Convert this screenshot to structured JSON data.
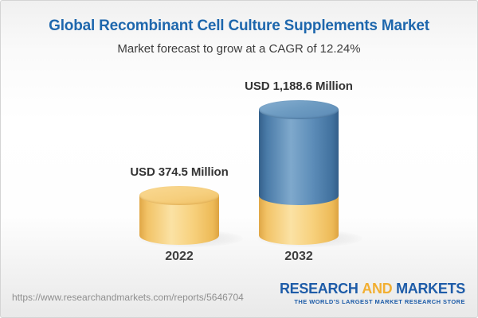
{
  "header": {
    "title": "Global Recombinant Cell Culture Supplements Market",
    "subtitle": "Market forecast to grow at a CAGR of 12.24%"
  },
  "chart_data": {
    "type": "bar",
    "title": "Global Recombinant Cell Culture Supplements Market",
    "subtitle": "Market forecast to grow at a CAGR of 12.24%",
    "unit": "USD Million",
    "cagr_percent": 12.24,
    "categories": [
      "2022",
      "2032"
    ],
    "values": [
      374.5,
      1188.6
    ],
    "ylim": [
      0,
      1188.6
    ],
    "grid": false,
    "legend": false,
    "bars": [
      {
        "category": "2022",
        "value": 374.5,
        "label": "USD 374.5 Million",
        "style": "yellow",
        "color": "#F5CE78"
      },
      {
        "category": "2032",
        "value": 1188.6,
        "label": "USD 1,188.6 Million",
        "style": "blue",
        "color": "#4E81AF",
        "base_segment": {
          "value": 374.5,
          "style": "yellow",
          "color": "#F5CE78"
        }
      }
    ]
  },
  "footer": {
    "url": "https://www.researchandmarkets.com/reports/5646704",
    "logo": {
      "word1": "RESEARCH",
      "word2": "AND",
      "word3": "MARKETS",
      "tagline": "THE WORLD'S LARGEST MARKET RESEARCH STORE"
    }
  }
}
